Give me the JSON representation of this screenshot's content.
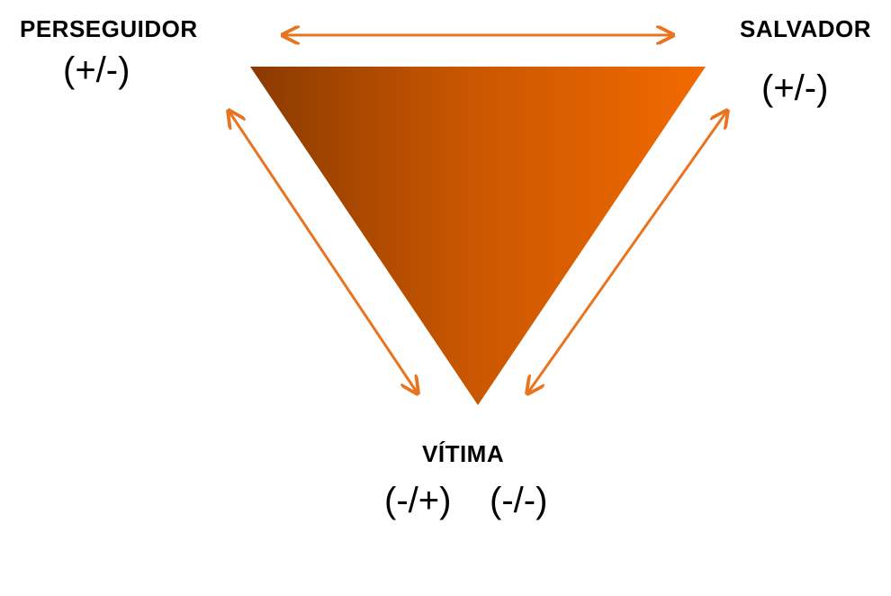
{
  "roles": {
    "persecutor": {
      "label": "PERSEGUIDOR",
      "sign": "(+/-)"
    },
    "rescuer": {
      "label": "SALVADOR",
      "sign": "(+/-)"
    },
    "victim": {
      "label": "VÍTIMA",
      "signs": [
        "(-/+)",
        "(-/-)"
      ]
    }
  },
  "colors": {
    "triangle_dark": "#8a3a00",
    "triangle_light": "#f26a00",
    "arrow": "#e8741f",
    "text": "#000000"
  }
}
